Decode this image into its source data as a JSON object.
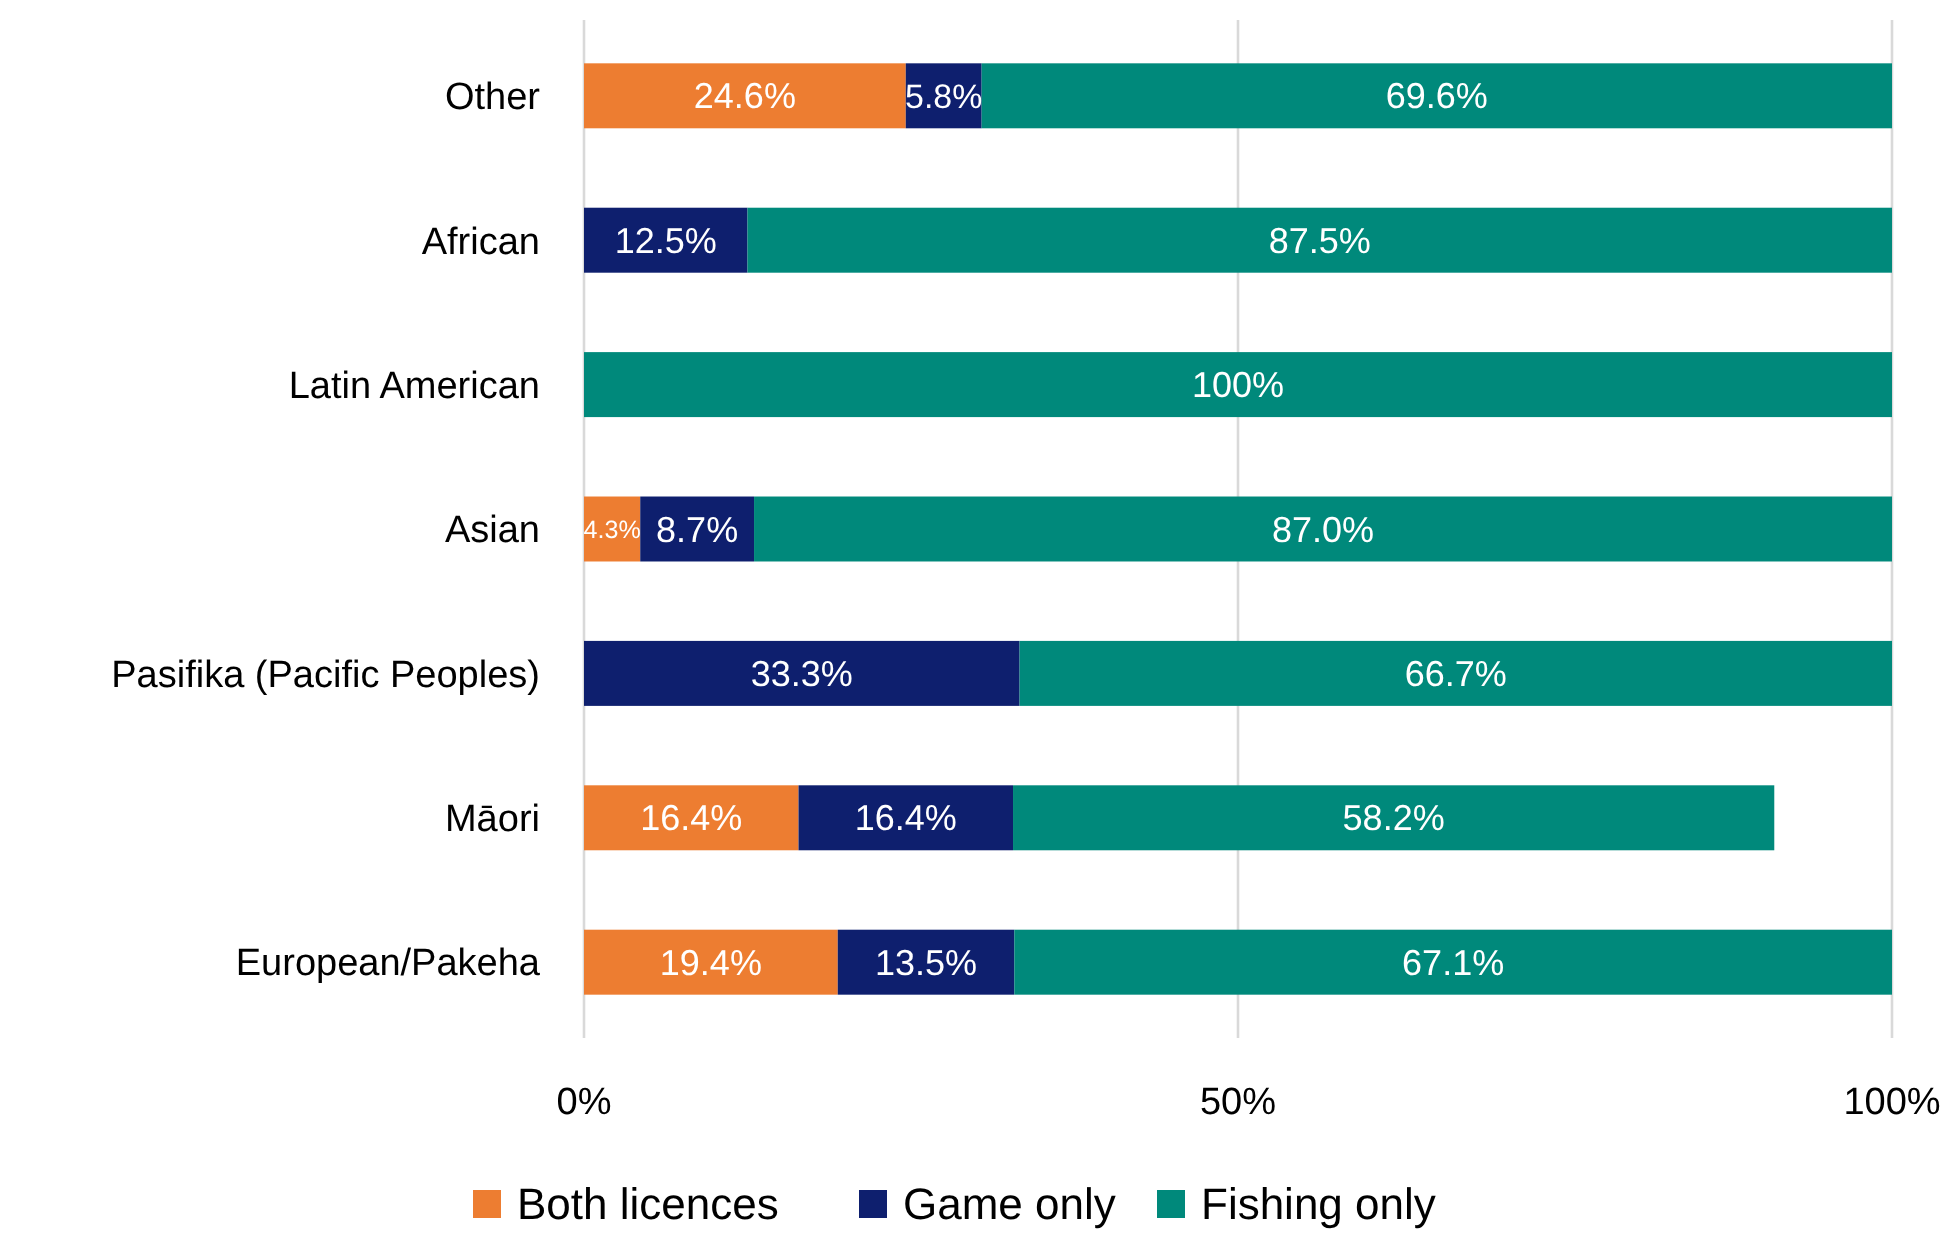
{
  "chart_data": {
    "type": "bar",
    "orientation": "horizontal",
    "stacked": true,
    "categories": [
      "Other",
      "African",
      "Latin American",
      "Asian",
      "Pasifika (Pacific Peoples)",
      "Māori",
      "European/Pakeha"
    ],
    "series": [
      {
        "name": "Both licences",
        "color": "#ed7d31",
        "values": [
          24.6,
          null,
          null,
          4.3,
          null,
          16.4,
          19.4
        ],
        "value_labels": [
          "24.6%",
          null,
          null,
          "4.3%",
          null,
          "16.4%",
          "19.4%"
        ]
      },
      {
        "name": "Game only",
        "color": "#0e1f6e",
        "values": [
          5.8,
          12.5,
          null,
          8.7,
          33.3,
          16.4,
          13.5
        ],
        "value_labels": [
          "5.8%",
          "12.5%",
          null,
          "8.7%",
          "33.3%",
          "16.4%",
          "13.5%"
        ]
      },
      {
        "name": "Fishing only",
        "color": "#00897b",
        "values": [
          69.6,
          87.5,
          100,
          87.0,
          66.7,
          58.2,
          67.1
        ],
        "value_labels": [
          "69.6%",
          "87.5%",
          "100%",
          "87.0%",
          "66.7%",
          "58.2%",
          "67.1%"
        ]
      }
    ],
    "xlim": [
      0,
      100
    ],
    "xticks": [
      {
        "value": 0,
        "label": "0%"
      },
      {
        "value": 50,
        "label": "50%"
      },
      {
        "value": 100,
        "label": "100%"
      }
    ],
    "grid": "x",
    "legend": "bottom"
  }
}
